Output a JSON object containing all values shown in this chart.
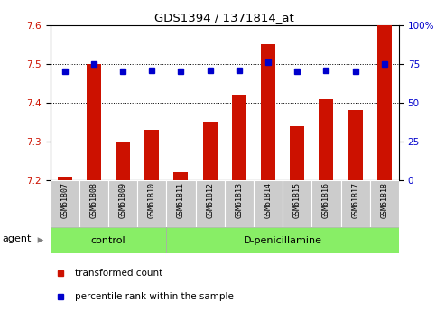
{
  "title": "GDS1394 / 1371814_at",
  "categories": [
    "GSM61807",
    "GSM61808",
    "GSM61809",
    "GSM61810",
    "GSM61811",
    "GSM61812",
    "GSM61813",
    "GSM61814",
    "GSM61815",
    "GSM61816",
    "GSM61817",
    "GSM61818"
  ],
  "red_values": [
    7.21,
    7.5,
    7.3,
    7.33,
    7.22,
    7.35,
    7.42,
    7.55,
    7.34,
    7.41,
    7.38,
    7.6
  ],
  "blue_values": [
    70,
    75,
    70,
    71,
    70,
    71,
    71,
    76,
    70,
    71,
    70,
    75
  ],
  "ylim_left": [
    7.2,
    7.6
  ],
  "ylim_right": [
    0,
    100
  ],
  "yticks_left": [
    7.2,
    7.3,
    7.4,
    7.5,
    7.6
  ],
  "yticks_right": [
    0,
    25,
    50,
    75,
    100
  ],
  "ytick_labels_right": [
    "0",
    "25",
    "50",
    "75",
    "100%"
  ],
  "control_count": 4,
  "control_label": "control",
  "treatment_label": "D-penicillamine",
  "agent_label": "agent",
  "legend_red": "transformed count",
  "legend_blue": "percentile rank within the sample",
  "bar_color": "#cc1100",
  "blue_color": "#0000cc",
  "green_light": "#aaffaa",
  "green_dark": "#66ee44",
  "tick_bg": "#cccccc",
  "background_color": "#ffffff"
}
